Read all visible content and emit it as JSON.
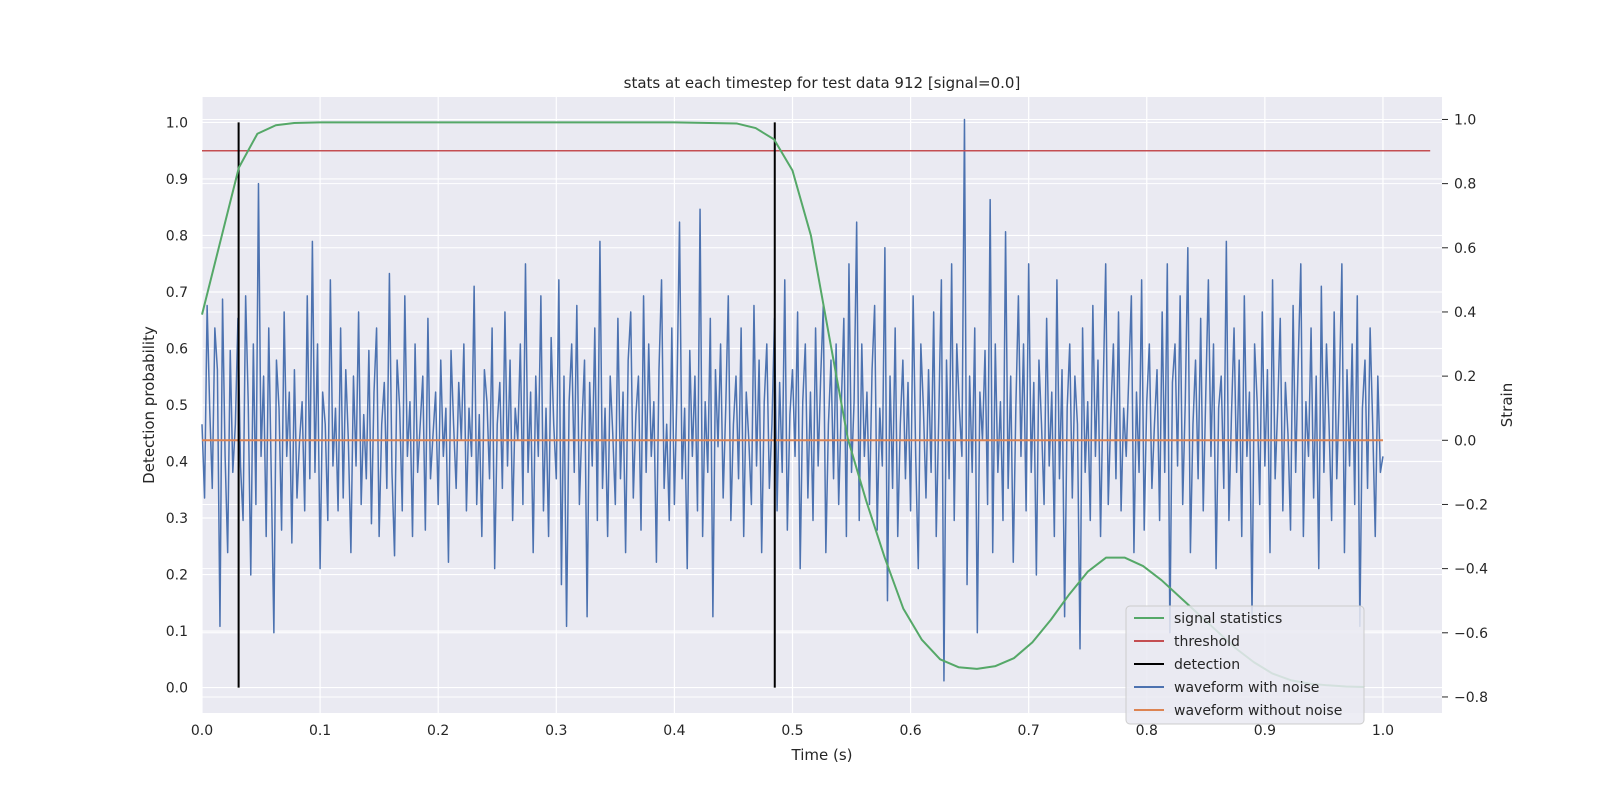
{
  "chart_data": {
    "type": "line",
    "title": "stats at each timestep for test data 912 [signal=0.0]",
    "xlabel": "Time (s)",
    "ylabel_left": "Detection probability",
    "ylabel_right": "Strain",
    "xlim": [
      0.0,
      1.05
    ],
    "ylim_left": [
      -0.045,
      1.045
    ],
    "ylim_right": [
      -0.85,
      1.07
    ],
    "x_ticks": [
      "0.0",
      "0.1",
      "0.2",
      "0.3",
      "0.4",
      "0.5",
      "0.6",
      "0.7",
      "0.8",
      "0.9",
      "1.0"
    ],
    "y_left_ticks": [
      "0.0",
      "0.1",
      "0.2",
      "0.3",
      "0.4",
      "0.5",
      "0.6",
      "0.7",
      "0.8",
      "0.9",
      "1.0"
    ],
    "y_right_ticks": [
      "−0.8",
      "−0.6",
      "−0.4",
      "−0.2",
      "0.0",
      "0.2",
      "0.4",
      "0.6",
      "0.8",
      "1.0"
    ],
    "grid": true,
    "legend_position": "lower-right",
    "colors": {
      "signal_statistics": "#55a868",
      "threshold": "#c44e52",
      "detection": "#000000",
      "waveform_with_noise": "#4c72b0",
      "waveform_without_noise": "#dd8452",
      "plot_bg": "#eaeaf2",
      "grid": "#ffffff"
    },
    "series": [
      {
        "name": "signal statistics",
        "axis": "left",
        "x": [
          0.0,
          0.0156,
          0.0312,
          0.0469,
          0.0625,
          0.0781,
          0.1,
          0.2,
          0.3,
          0.4,
          0.4531,
          0.4688,
          0.4844,
          0.5,
          0.5156,
          0.5312,
          0.5469,
          0.5625,
          0.5781,
          0.5938,
          0.6094,
          0.625,
          0.6406,
          0.6562,
          0.6719,
          0.6875,
          0.7031,
          0.7188,
          0.7344,
          0.75,
          0.7656,
          0.7812,
          0.7969,
          0.8125,
          0.8281,
          0.8438,
          0.8594,
          0.875,
          0.8906,
          0.9062,
          0.9219,
          0.9375,
          0.9531,
          0.9688,
          0.9844
        ],
        "values": [
          0.66,
          0.79,
          0.92,
          0.98,
          0.995,
          0.999,
          1.0,
          1.0,
          1.0,
          1.0,
          0.998,
          0.99,
          0.97,
          0.915,
          0.8,
          0.62,
          0.44,
          0.33,
          0.23,
          0.14,
          0.085,
          0.05,
          0.036,
          0.033,
          0.038,
          0.052,
          0.08,
          0.12,
          0.165,
          0.205,
          0.23,
          0.23,
          0.215,
          0.19,
          0.16,
          0.13,
          0.1,
          0.07,
          0.045,
          0.025,
          0.013,
          0.007,
          0.004,
          0.002,
          0.001
        ]
      },
      {
        "name": "threshold",
        "axis": "left",
        "x": [
          0.0,
          1.04
        ],
        "values": [
          0.95,
          0.95
        ]
      },
      {
        "name": "detection",
        "axis": "left",
        "x": [
          0.031,
          0.485
        ],
        "values": [
          1.0,
          1.0
        ]
      },
      {
        "name": "waveform with noise",
        "axis": "right",
        "x_range": [
          0.0,
          1.0
        ],
        "values": [
          0.05,
          -0.18,
          0.42,
          0.1,
          -0.15,
          0.35,
          0.22,
          -0.58,
          0.44,
          -0.05,
          -0.35,
          0.28,
          -0.1,
          0.05,
          0.38,
          -0.08,
          -0.25,
          0.45,
          0.12,
          -0.42,
          0.3,
          -0.2,
          0.8,
          -0.05,
          0.2,
          -0.3,
          0.35,
          -0.12,
          -0.6,
          0.25,
          0.1,
          -0.28,
          0.4,
          -0.05,
          0.15,
          -0.32,
          0.22,
          -0.18,
          0.0,
          0.12,
          -0.22,
          0.45,
          -0.12,
          0.62,
          -0.1,
          0.3,
          -0.4,
          0.15,
          0.05,
          -0.25,
          0.5,
          -0.08,
          0.1,
          -0.22,
          0.35,
          -0.18,
          0.22,
          0.0,
          -0.35,
          0.2,
          -0.08,
          0.4,
          -0.2,
          0.08,
          -0.12,
          0.28,
          -0.26,
          0.15,
          0.35,
          -0.3,
          0.05,
          0.18,
          -0.15,
          0.52,
          -0.1,
          -0.36,
          0.25,
          0.1,
          -0.22,
          0.45,
          -0.05,
          0.12,
          -0.3,
          0.3,
          -0.1,
          0.05,
          0.2,
          -0.28,
          0.38,
          -0.12,
          0.02,
          0.15,
          -0.2,
          0.25,
          -0.05,
          0.1,
          -0.38,
          0.28,
          0.05,
          -0.15,
          0.18,
          0.0,
          0.3,
          -0.22,
          0.1,
          -0.05,
          0.48,
          -0.2,
          0.08,
          -0.3,
          0.22,
          0.12,
          -0.12,
          0.35,
          -0.4,
          0.05,
          0.18,
          -0.15,
          0.4,
          -0.08,
          0.25,
          -0.25,
          0.1,
          0.0,
          0.3,
          -0.2,
          0.55,
          -0.1,
          0.15,
          -0.35,
          0.2,
          -0.05,
          0.45,
          -0.22,
          0.1,
          -0.3,
          0.32,
          0.05,
          -0.12,
          0.5,
          -0.45,
          0.2,
          -0.58,
          0.12,
          0.3,
          -0.1,
          0.42,
          -0.2,
          0.05,
          0.25,
          -0.55,
          0.18,
          -0.08,
          0.35,
          -0.25,
          0.62,
          -0.15,
          0.1,
          -0.3,
          0.2,
          0.02,
          -0.2,
          0.38,
          -0.12,
          0.15,
          -0.35,
          0.25,
          0.4,
          -0.18,
          0.08,
          0.2,
          -0.28,
          0.45,
          -0.1,
          0.3,
          -0.05,
          0.12,
          -0.38,
          0.22,
          0.5,
          -0.15,
          0.05,
          -0.25,
          0.35,
          -0.2,
          0.15,
          0.68,
          -0.12,
          0.1,
          -0.4,
          0.28,
          -0.05,
          0.2,
          -0.22,
          0.72,
          -0.3,
          0.12,
          -0.1,
          0.38,
          -0.55,
          0.22,
          -0.02,
          0.3,
          -0.18,
          0.1,
          0.45,
          -0.25,
          0.05,
          0.2,
          -0.12,
          0.35,
          -0.3,
          0.15,
          0.0,
          -0.2,
          0.42,
          -0.08,
          0.25,
          -0.35,
          0.12,
          0.3,
          -0.15,
          0.05,
          0.38,
          -0.22,
          0.18,
          -0.1,
          0.5,
          -0.28,
          0.08,
          0.22,
          -0.05,
          0.4,
          -0.4,
          0.12,
          0.3,
          -0.18,
          0.15,
          -0.25,
          0.35,
          -0.08,
          0.2,
          0.42,
          -0.35,
          0.05,
          0.25,
          -0.12,
          0.3,
          -0.2,
          0.1,
          0.38,
          -0.3,
          0.55,
          -0.1,
          0.12,
          0.68,
          -0.25,
          0.3,
          -0.05,
          0.15,
          -0.2,
          0.22,
          0.42,
          -0.28,
          0.1,
          -0.08,
          0.6,
          -0.5,
          0.2,
          -0.15,
          0.35,
          -0.3,
          0.05,
          0.25,
          -0.12,
          0.18,
          -0.22,
          0.45,
          -0.05,
          -0.4,
          0.3,
          0.1,
          -0.18,
          0.22,
          -0.1,
          0.4,
          -0.3,
          0.08,
          0.5,
          -0.75,
          0.25,
          -0.12,
          0.55,
          -0.25,
          0.3,
          0.1,
          -0.05,
          1.0,
          -0.45,
          0.2,
          -0.1,
          0.35,
          -0.6,
          0.15,
          0.0,
          0.28,
          -0.2,
          0.75,
          -0.35,
          0.3,
          -0.1,
          0.12,
          -0.25,
          0.65,
          -0.15,
          0.2,
          -0.38,
          0.1,
          0.45,
          -0.05,
          0.3,
          -0.22,
          0.55,
          -0.1,
          0.18,
          -0.42,
          0.25,
          0.05,
          -0.2,
          0.38,
          -0.08,
          0.15,
          -0.3,
          0.5,
          -0.12,
          0.22,
          -0.55,
          0.1,
          0.3,
          -0.18,
          0.2,
          0.05,
          -0.65,
          0.35,
          -0.1,
          0.12,
          -0.25,
          0.42,
          -0.05,
          0.25,
          -0.3,
          0.15,
          0.55,
          -0.2,
          0.08,
          0.3,
          -0.12,
          0.4,
          -0.22,
          0.1,
          -0.05,
          0.2,
          0.45,
          -0.35,
          0.15,
          -0.1,
          0.5,
          -0.28,
          0.12,
          0.3,
          -0.15,
          0.05,
          0.22,
          -0.25,
          0.4,
          -0.1,
          0.55,
          -0.6,
          0.18,
          0.3,
          -0.08,
          0.45,
          -0.2,
          0.12,
          0.6,
          -0.35,
          0.05,
          0.25,
          -0.12,
          0.38,
          -0.22,
          0.15,
          0.5,
          -0.05,
          0.3,
          -0.4,
          0.1,
          0.2,
          -0.15,
          0.62,
          -0.25,
          0.08,
          0.35,
          -0.1,
          0.25,
          -0.3,
          0.45,
          -0.05,
          0.15,
          -0.55,
          0.3,
          0.12,
          -0.2,
          0.4,
          -0.08,
          0.22,
          -0.35,
          0.5,
          -0.12,
          0.1,
          0.38,
          -0.22,
          0.18,
          0.02,
          -0.28,
          0.42,
          -0.1,
          0.25,
          0.55,
          -0.3,
          0.12,
          -0.05,
          0.35,
          -0.18,
          0.2,
          -0.4,
          0.48,
          -0.1,
          0.3,
          0.05,
          -0.25,
          0.4,
          -0.12,
          0.15,
          0.55,
          -0.35,
          0.22,
          -0.08,
          0.3,
          -0.2,
          0.45,
          -0.58,
          0.1,
          0.25,
          -0.15,
          0.35,
          0.05,
          -0.3,
          0.2,
          -0.1,
          -0.05
        ]
      },
      {
        "name": "waveform without noise",
        "axis": "right",
        "x": [
          0.0,
          1.0
        ],
        "values": [
          0.0,
          0.0
        ]
      }
    ]
  }
}
